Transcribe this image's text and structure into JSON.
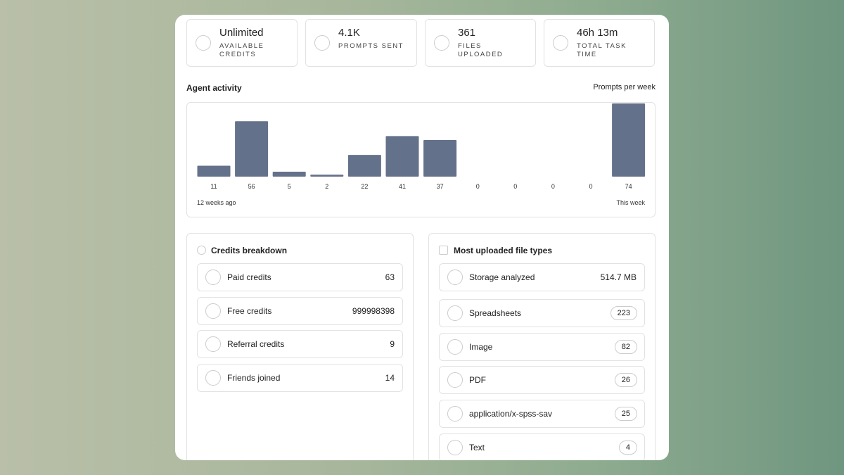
{
  "stats": [
    {
      "value": "Unlimited",
      "label": "AVAILABLE CREDITS"
    },
    {
      "value": "4.1K",
      "label": "PROMPTS SENT"
    },
    {
      "value": "361",
      "label": "FILES UPLOADED"
    },
    {
      "value": "46h 13m",
      "label": "TOTAL TASK TIME"
    }
  ],
  "activity": {
    "title": "Agent activity",
    "subtitle": "Prompts per week",
    "values": [
      11,
      56,
      5,
      2,
      22,
      41,
      37,
      0,
      0,
      0,
      0,
      74
    ],
    "color": "#64718a",
    "start_label": "12 weeks ago",
    "end_label": "This week"
  },
  "credits": {
    "title": "Credits breakdown",
    "items": [
      {
        "name": "Paid credits",
        "value": 63
      },
      {
        "name": "Free credits",
        "value": 999998398
      },
      {
        "name": "Referral credits",
        "value": 9
      },
      {
        "name": "Friends joined",
        "value": 14
      }
    ]
  },
  "file_types": {
    "title": "Most uploaded file types",
    "storage": {
      "name": "Storage analyzed",
      "value": "514.7 MB"
    },
    "items": [
      {
        "name": "Spreadsheets",
        "count": 223
      },
      {
        "name": "Image",
        "count": 82
      },
      {
        "name": "PDF",
        "count": 26
      },
      {
        "name": "application/x-spss-sav",
        "count": 25
      },
      {
        "name": "Text",
        "count": 4
      }
    ]
  }
}
